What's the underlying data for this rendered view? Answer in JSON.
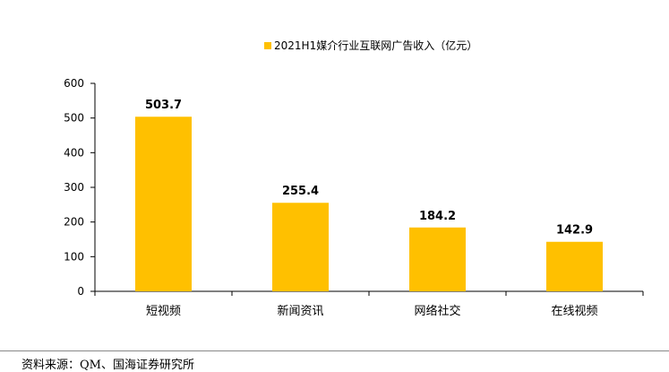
{
  "chart_data": {
    "type": "bar",
    "title": "",
    "legend": {
      "label": "2021H1媒介行业互联网广告收入（亿元）",
      "placement": "top"
    },
    "categories": [
      "短视频",
      "新闻资讯",
      "网络社交",
      "在线视频"
    ],
    "series": [
      {
        "name": "2021H1媒介行业互联网广告收入（亿元）",
        "values": [
          503.7,
          255.4,
          184.2,
          142.9
        ],
        "color": "#FFC000"
      }
    ],
    "data_labels": [
      "503.7",
      "255.4",
      "184.2",
      "142.9"
    ],
    "ylim": [
      0,
      600
    ],
    "yticks": [
      0,
      100,
      200,
      300,
      400,
      500,
      600
    ],
    "grid": false
  },
  "source": "资料来源：QM、国海证券研究所"
}
